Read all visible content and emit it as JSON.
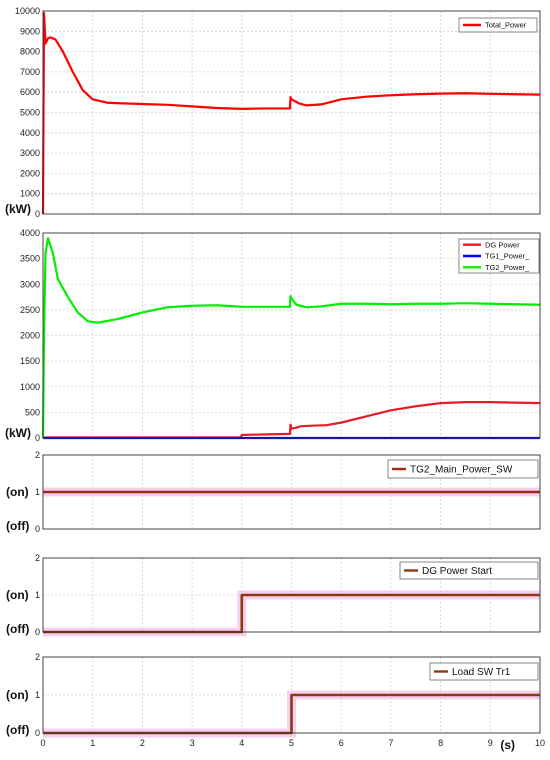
{
  "chart_data": [
    {
      "type": "line",
      "x_range": [
        0,
        10
      ],
      "ylim": [
        0,
        10000
      ],
      "yticks": [
        "0",
        "1000",
        "2000",
        "3000",
        "4000",
        "5000",
        "6000",
        "7000",
        "8000",
        "9000",
        "10000"
      ],
      "yunit": "(kW)",
      "grid": true,
      "legend_placement": "top-right",
      "series": [
        {
          "name": "Total_Power",
          "color": "#ff0000",
          "x": [
            0,
            0.02,
            0.05,
            0.1,
            0.15,
            0.25,
            0.4,
            0.6,
            0.8,
            1.0,
            1.3,
            1.6,
            2.0,
            2.5,
            3.0,
            3.5,
            4.0,
            4.5,
            4.97,
            4.98,
            5.0,
            5.15,
            5.3,
            5.6,
            6.0,
            6.5,
            7.0,
            7.5,
            8.0,
            8.5,
            9.0,
            9.5,
            10.0
          ],
          "y": [
            0,
            9900,
            8400,
            8650,
            8700,
            8600,
            8000,
            7000,
            6100,
            5650,
            5480,
            5450,
            5420,
            5380,
            5300,
            5220,
            5180,
            5200,
            5200,
            5750,
            5650,
            5450,
            5350,
            5400,
            5650,
            5780,
            5850,
            5900,
            5930,
            5950,
            5920,
            5900,
            5880
          ]
        }
      ]
    },
    {
      "type": "line",
      "x_range": [
        0,
        10
      ],
      "ylim": [
        0,
        4000
      ],
      "yticks": [
        "0",
        "500",
        "1000",
        "1500",
        "2000",
        "2500",
        "3000",
        "3500",
        "4000"
      ],
      "yunit": "(kW)",
      "grid": true,
      "legend_placement": "top-right",
      "series": [
        {
          "name": "DG Power",
          "color": "#e51c23",
          "x": [
            0,
            3.98,
            4.0,
            4.5,
            4.97,
            4.98,
            5.0,
            5.2,
            5.4,
            5.7,
            6.0,
            6.5,
            7.0,
            7.5,
            8.0,
            8.5,
            9.0,
            9.5,
            10.0
          ],
          "y": [
            10,
            10,
            60,
            70,
            80,
            260,
            180,
            230,
            240,
            250,
            300,
            420,
            540,
            620,
            680,
            700,
            700,
            690,
            680
          ]
        },
        {
          "name": "TG1_Power_",
          "color": "#0000ff",
          "x": [
            0,
            10
          ],
          "y": [
            0,
            0
          ]
        },
        {
          "name": "TG2_Power_",
          "color": "#00ee00",
          "x": [
            0,
            0.02,
            0.05,
            0.1,
            0.2,
            0.3,
            0.5,
            0.7,
            0.9,
            1.1,
            1.5,
            2.0,
            2.5,
            3.0,
            3.5,
            4.0,
            4.5,
            4.97,
            4.98,
            5.0,
            5.1,
            5.3,
            5.6,
            6.0,
            6.5,
            7.0,
            7.5,
            8.0,
            8.5,
            9.0,
            9.5,
            10.0
          ],
          "y": [
            0,
            2000,
            3600,
            3900,
            3600,
            3100,
            2750,
            2450,
            2280,
            2250,
            2320,
            2450,
            2550,
            2580,
            2590,
            2560,
            2560,
            2560,
            2770,
            2720,
            2600,
            2550,
            2570,
            2620,
            2620,
            2610,
            2620,
            2620,
            2630,
            2620,
            2610,
            2600
          ]
        }
      ]
    },
    {
      "type": "line",
      "x_range": [
        0,
        10
      ],
      "ylim": [
        0,
        2
      ],
      "yticks": [
        "0",
        "1",
        "2"
      ],
      "state_labels": {
        "on": "(on)",
        "off": "(off)"
      },
      "grid": true,
      "legend_placement": "top-right",
      "series": [
        {
          "name": "TG2_Main_Power_SW",
          "color": "#9b2d0f",
          "x": [
            0,
            10
          ],
          "y": [
            1,
            1
          ]
        }
      ]
    },
    {
      "type": "line",
      "x_range": [
        0,
        10
      ],
      "ylim": [
        0,
        2
      ],
      "yticks": [
        "0",
        "1",
        "2"
      ],
      "state_labels": {
        "on": "(on)",
        "off": "(off)"
      },
      "grid": true,
      "legend_placement": "top-right",
      "series": [
        {
          "name": "DG Power Start",
          "color": "#8b3a0f",
          "x": [
            0,
            4,
            4,
            10
          ],
          "y": [
            0,
            0,
            1,
            1
          ]
        }
      ]
    },
    {
      "type": "line",
      "x_range": [
        0,
        10
      ],
      "ylim": [
        0,
        2
      ],
      "yticks": [
        "0",
        "1",
        "2"
      ],
      "xticks": [
        "0",
        "1",
        "2",
        "3",
        "4",
        "5",
        "6",
        "7",
        "8",
        "9",
        "10"
      ],
      "xunit": "(s)",
      "state_labels": {
        "on": "(on)",
        "off": "(off)"
      },
      "grid": true,
      "legend_placement": "top-right",
      "series": [
        {
          "name": "Load SW Tr1",
          "color": "#8b3a0f",
          "x": [
            0,
            5,
            5,
            10
          ],
          "y": [
            0,
            0,
            1,
            1
          ]
        }
      ]
    }
  ]
}
